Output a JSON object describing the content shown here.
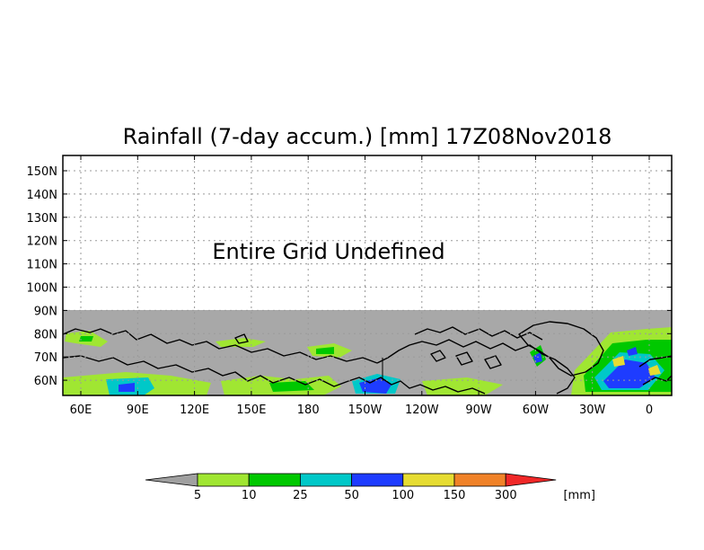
{
  "title": "Rainfall (7-day accum.) [mm] 17Z08Nov2018",
  "annotation": "Entire Grid Undefined",
  "y_ticks": [
    "150N",
    "140N",
    "130N",
    "120N",
    "110N",
    "100N",
    "90N",
    "80N",
    "70N",
    "60N"
  ],
  "x_ticks": [
    "60E",
    "90E",
    "120E",
    "150E",
    "180",
    "150W",
    "120W",
    "90W",
    "60W",
    "30W",
    "0"
  ],
  "colorbar": {
    "thresholds": [
      "5",
      "10",
      "25",
      "50",
      "100",
      "150",
      "300"
    ],
    "unit": "[mm]",
    "colors": [
      "#a0a0a0",
      "#a0e632",
      "#00c800",
      "#00c8c8",
      "#1e3cff",
      "#e6dc32",
      "#f08228",
      "#f02828"
    ]
  },
  "colors": {
    "land_mask": "#a8a8a8",
    "frame": "#000000",
    "grid": "#9a9a9a",
    "coast": "#000000"
  }
}
